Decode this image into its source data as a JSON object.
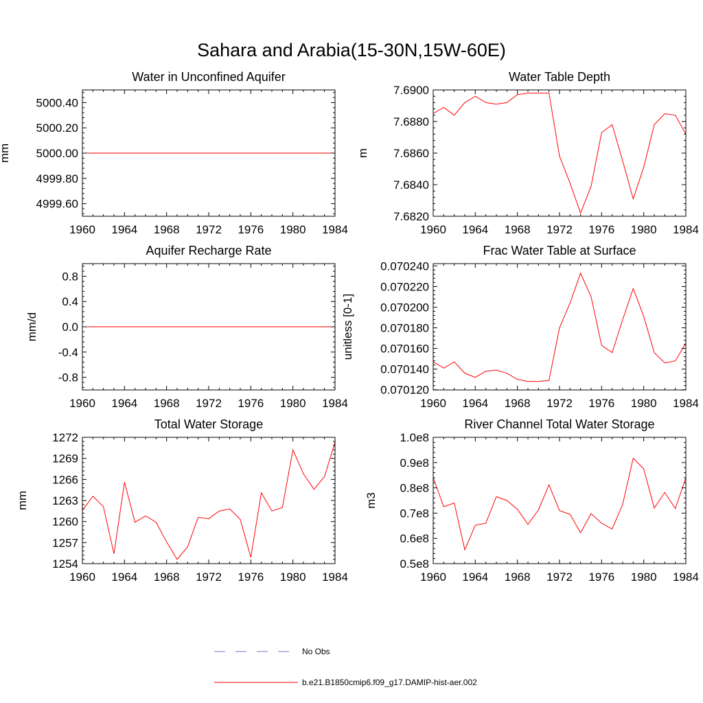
{
  "title": "Sahara and Arabia(15-30N,15W-60E)",
  "legend": [
    {
      "label": "No Obs",
      "color": "#7777cc",
      "style": "dashed"
    },
    {
      "label": "b.e21.B1850cmip6.f09_g17.DAMIP-hist-aer.002",
      "color": "#ff0000",
      "style": "solid"
    }
  ],
  "chart_data": [
    {
      "type": "line",
      "title": "Water in Unconfined Aquifer",
      "ylabel": "mm",
      "xlim": [
        1960,
        1984
      ],
      "ylim": [
        4999.5,
        5000.5
      ],
      "xticks": [
        1960,
        1964,
        1968,
        1972,
        1976,
        1980,
        1984
      ],
      "yticks": [
        4999.6,
        4999.8,
        5000.0,
        5000.2,
        5000.4
      ],
      "ytick_labels": [
        "4999.60",
        "4999.80",
        "5000.00",
        "5000.20",
        "5000.40"
      ],
      "series": [
        {
          "color": "#ff0000",
          "x": [
            1960,
            1961,
            1962,
            1963,
            1964,
            1965,
            1966,
            1967,
            1968,
            1969,
            1970,
            1971,
            1972,
            1973,
            1974,
            1975,
            1976,
            1977,
            1978,
            1979,
            1980,
            1981,
            1982,
            1983,
            1984
          ],
          "y": [
            5000,
            5000,
            5000,
            5000,
            5000,
            5000,
            5000,
            5000,
            5000,
            5000,
            5000,
            5000,
            5000,
            5000,
            5000,
            5000,
            5000,
            5000,
            5000,
            5000,
            5000,
            5000,
            5000,
            5000,
            5000
          ]
        }
      ]
    },
    {
      "type": "line",
      "title": "Water Table Depth",
      "ylabel": "m",
      "xlim": [
        1960,
        1984
      ],
      "ylim": [
        7.682,
        7.69
      ],
      "xticks": [
        1960,
        1964,
        1968,
        1972,
        1976,
        1980,
        1984
      ],
      "yticks": [
        7.682,
        7.684,
        7.686,
        7.688,
        7.69
      ],
      "ytick_labels": [
        "7.6820",
        "7.6840",
        "7.6860",
        "7.6880",
        "7.6900"
      ],
      "series": [
        {
          "color": "#ff0000",
          "x": [
            1960,
            1961,
            1962,
            1963,
            1964,
            1965,
            1966,
            1967,
            1968,
            1969,
            1970,
            1971,
            1972,
            1973,
            1974,
            1975,
            1976,
            1977,
            1978,
            1979,
            1980,
            1981,
            1982,
            1983,
            1984
          ],
          "y": [
            7.6885,
            7.6889,
            7.6884,
            7.6892,
            7.6896,
            7.6892,
            7.6891,
            7.6892,
            7.6897,
            7.6898,
            7.6898,
            7.6898,
            7.6858,
            7.6841,
            7.6822,
            7.6839,
            7.6873,
            7.6878,
            7.6855,
            7.6831,
            7.6851,
            7.6878,
            7.6885,
            7.6884,
            7.6872
          ]
        }
      ]
    },
    {
      "type": "line",
      "title": "Aquifer Recharge Rate",
      "ylabel": "mm/d",
      "xlim": [
        1960,
        1984
      ],
      "ylim": [
        -1.0,
        1.0
      ],
      "xticks": [
        1960,
        1964,
        1968,
        1972,
        1976,
        1980,
        1984
      ],
      "yticks": [
        -0.8,
        -0.4,
        0.0,
        0.4,
        0.8
      ],
      "ytick_labels": [
        "-0.8",
        "-0.4",
        "0.0",
        "0.4",
        "0.8"
      ],
      "series": [
        {
          "color": "#ff0000",
          "x": [
            1960,
            1961,
            1962,
            1963,
            1964,
            1965,
            1966,
            1967,
            1968,
            1969,
            1970,
            1971,
            1972,
            1973,
            1974,
            1975,
            1976,
            1977,
            1978,
            1979,
            1980,
            1981,
            1982,
            1983,
            1984
          ],
          "y": [
            0,
            0,
            0,
            0,
            0,
            0,
            0,
            0,
            0,
            0,
            0,
            0,
            0,
            0,
            0,
            0,
            0,
            0,
            0,
            0,
            0,
            0,
            0,
            0,
            0
          ]
        }
      ]
    },
    {
      "type": "line",
      "title": "Frac Water Table at Surface",
      "ylabel": "unitless [0-1]",
      "xlim": [
        1960,
        1984
      ],
      "ylim": [
        0.0701198,
        0.0702422
      ],
      "xticks": [
        1960,
        1964,
        1968,
        1972,
        1976,
        1980,
        1984
      ],
      "yticks": [
        0.07012,
        0.07014,
        0.07016,
        0.07018,
        0.0702,
        0.07022,
        0.07024
      ],
      "ytick_labels": [
        "0.070120",
        "0.070140",
        "0.070160",
        "0.070180",
        "0.070200",
        "0.070220",
        "0.070240"
      ],
      "series": [
        {
          "color": "#ff0000",
          "x": [
            1960,
            1961,
            1962,
            1963,
            1964,
            1965,
            1966,
            1967,
            1968,
            1969,
            1970,
            1971,
            1972,
            1973,
            1974,
            1975,
            1976,
            1977,
            1978,
            1979,
            1980,
            1981,
            1982,
            1983,
            1984
          ],
          "y": [
            0.070147,
            0.070141,
            0.070147,
            0.070136,
            0.070132,
            0.070138,
            0.070139,
            0.070136,
            0.07013,
            0.070128,
            0.070128,
            0.070129,
            0.07018,
            0.070204,
            0.070233,
            0.07021,
            0.070163,
            0.070156,
            0.070188,
            0.070218,
            0.070191,
            0.070156,
            0.070146,
            0.070148,
            0.070165
          ]
        }
      ]
    },
    {
      "type": "line",
      "title": "Total Water Storage",
      "ylabel": "mm",
      "xlim": [
        1960,
        1984
      ],
      "ylim": [
        1254,
        1272
      ],
      "xticks": [
        1960,
        1964,
        1968,
        1972,
        1976,
        1980,
        1984
      ],
      "yticks": [
        1254,
        1257,
        1260,
        1263,
        1266,
        1269,
        1272
      ],
      "ytick_labels": [
        "1254",
        "1257",
        "1260",
        "1263",
        "1266",
        "1269",
        "1272"
      ],
      "series": [
        {
          "color": "#ff0000",
          "x": [
            1960,
            1961,
            1962,
            1963,
            1964,
            1965,
            1966,
            1967,
            1968,
            1969,
            1970,
            1971,
            1972,
            1973,
            1974,
            1975,
            1976,
            1977,
            1978,
            1979,
            1980,
            1981,
            1982,
            1983,
            1984
          ],
          "y": [
            1261.6,
            1263.6,
            1262.1,
            1255.4,
            1265.6,
            1259.9,
            1260.8,
            1259.9,
            1257.1,
            1254.6,
            1256.4,
            1260.6,
            1260.4,
            1261.5,
            1261.8,
            1260.3,
            1254.9,
            1264.1,
            1261.5,
            1262.0,
            1270.2,
            1266.8,
            1264.6,
            1266.4,
            1271.3
          ]
        }
      ]
    },
    {
      "type": "line",
      "title": "River Channel Total Water Storage",
      "ylabel": "m3",
      "xlim": [
        1960,
        1984
      ],
      "ylim": [
        50000000.0,
        100000000.0
      ],
      "xticks": [
        1960,
        1964,
        1968,
        1972,
        1976,
        1980,
        1984
      ],
      "yticks": [
        50000000.0,
        60000000.0,
        70000000.0,
        80000000.0,
        90000000.0,
        100000000.0
      ],
      "ytick_labels": [
        "0.5e8",
        "0.6e8",
        "0.7e8",
        "0.8e8",
        "0.9e8",
        "1.0e8"
      ],
      "series": [
        {
          "color": "#ff0000",
          "x": [
            1960,
            1961,
            1962,
            1963,
            1964,
            1965,
            1966,
            1967,
            1968,
            1969,
            1970,
            1971,
            1972,
            1973,
            1974,
            1975,
            1976,
            1977,
            1978,
            1979,
            1980,
            1981,
            1982,
            1983,
            1984
          ],
          "y": [
            84000000.0,
            72500000.0,
            74000000.0,
            55500000.0,
            65200000.0,
            66000000.0,
            76500000.0,
            75000000.0,
            71500000.0,
            65500000.0,
            71300000.0,
            81200000.0,
            71000000.0,
            69500000.0,
            62200000.0,
            69800000.0,
            66000000.0,
            63700000.0,
            73500000.0,
            91700000.0,
            87500000.0,
            72000000.0,
            78200000.0,
            71800000.0,
            84000000.0
          ]
        }
      ]
    }
  ]
}
